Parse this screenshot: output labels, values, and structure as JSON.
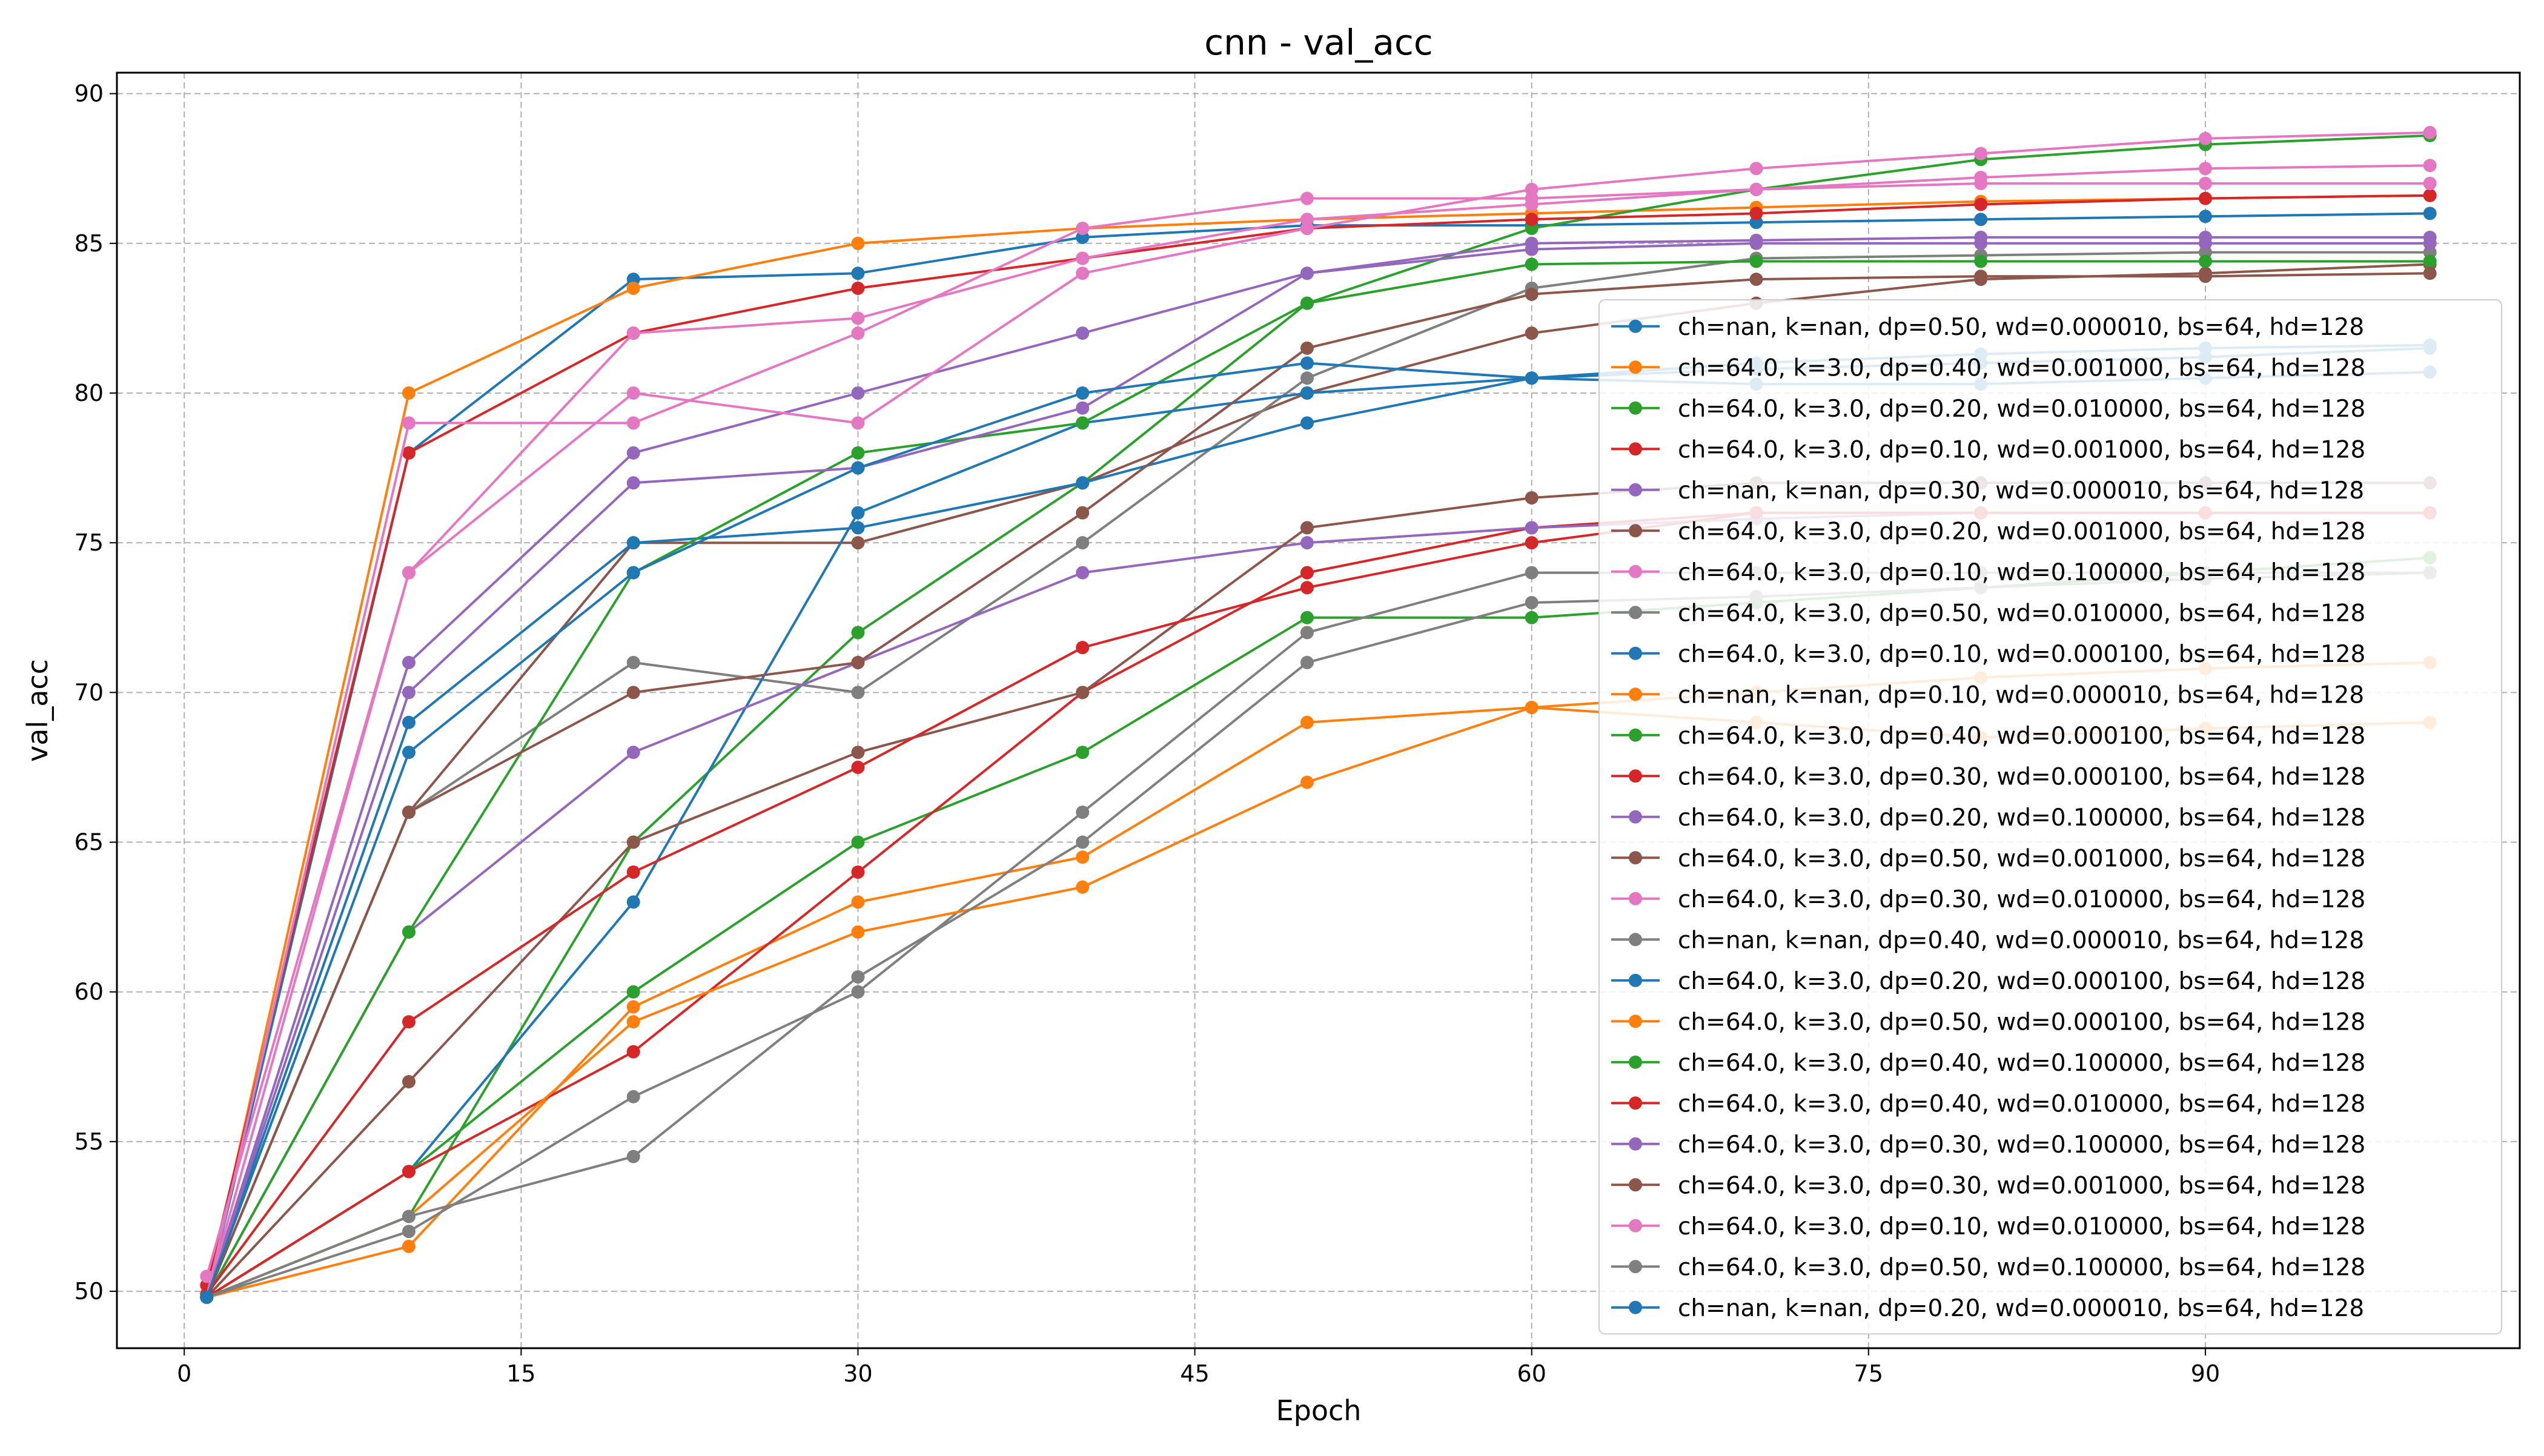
{
  "chart_data": {
    "type": "line",
    "title": "cnn - val_acc",
    "xlabel": "Epoch",
    "ylabel": "val_acc",
    "xlim": [
      -3,
      104
    ],
    "ylim": [
      48.1,
      90.7
    ],
    "xticks": [
      0,
      15,
      30,
      45,
      60,
      75,
      90
    ],
    "yticks": [
      50,
      55,
      60,
      65,
      70,
      75,
      80,
      85,
      90
    ],
    "grid": true,
    "legend_position": "lower-right",
    "markers": true,
    "colors": [
      "#1f77b4",
      "#ff7f0e",
      "#2ca02c",
      "#d62728",
      "#9467bd",
      "#8c564b",
      "#e377c2",
      "#7f7f7f"
    ],
    "series": [
      {
        "name": "ch=nan, k=nan, dp=0.50, wd=0.000010, bs=64, hd=128",
        "x": [
          1,
          10,
          20,
          30,
          40,
          50,
          60,
          70,
          80,
          90,
          100
        ],
        "y": [
          49.8,
          78,
          83.8,
          84,
          85.2,
          85.6,
          85.6,
          85.7,
          85.8,
          85.9,
          86.0
        ]
      },
      {
        "name": "ch=64.0, k=3.0, dp=0.40, wd=0.001000, bs=64, hd=128",
        "x": [
          1,
          10,
          20,
          30,
          40,
          50,
          60,
          70,
          80,
          90,
          100
        ],
        "y": [
          49.9,
          80,
          83.5,
          85,
          85.5,
          85.8,
          86.0,
          86.2,
          86.4,
          86.5,
          86.6
        ]
      },
      {
        "name": "ch=64.0, k=3.0, dp=0.20, wd=0.010000, bs=64, hd=128",
        "x": [
          1,
          10,
          20,
          30,
          40,
          50,
          60,
          70,
          80,
          90,
          100
        ],
        "y": [
          49.8,
          52.5,
          65,
          72,
          77,
          83,
          85.5,
          86.8,
          87.8,
          88.3,
          88.6
        ]
      },
      {
        "name": "ch=64.0, k=3.0, dp=0.10, wd=0.001000, bs=64, hd=128",
        "x": [
          1,
          10,
          20,
          30,
          40,
          50,
          60,
          70,
          80,
          90,
          100
        ],
        "y": [
          50.2,
          78,
          82,
          83.5,
          84.5,
          85.5,
          85.8,
          86.0,
          86.3,
          86.5,
          86.6
        ]
      },
      {
        "name": "ch=nan, k=nan, dp=0.30, wd=0.000010, bs=64, hd=128",
        "x": [
          1,
          10,
          20,
          30,
          40,
          50,
          60,
          70,
          80,
          90,
          100
        ],
        "y": [
          49.8,
          71,
          78,
          80,
          82,
          84,
          85,
          85.1,
          85.2,
          85.2,
          85.2
        ]
      },
      {
        "name": "ch=64.0, k=3.0, dp=0.20, wd=0.001000, bs=64, hd=128",
        "x": [
          1,
          10,
          20,
          30,
          40,
          50,
          60,
          70,
          80,
          90,
          100
        ],
        "y": [
          49.8,
          66,
          75,
          75,
          77,
          80,
          82,
          83,
          83.8,
          84,
          84.3
        ]
      },
      {
        "name": "ch=64.0, k=3.0, dp=0.10, wd=0.100000, bs=64, hd=128",
        "x": [
          1,
          10,
          20,
          30,
          40,
          50,
          60,
          70,
          80,
          90,
          100
        ],
        "y": [
          50.5,
          74,
          80,
          79,
          84,
          85.5,
          86.8,
          87.5,
          88.0,
          88.5,
          88.7
        ]
      },
      {
        "name": "ch=64.0, k=3.0, dp=0.50, wd=0.010000, bs=64, hd=128",
        "x": [
          1,
          10,
          20,
          30,
          40,
          50,
          60,
          70,
          80,
          90,
          100
        ],
        "y": [
          49.8,
          66,
          71,
          70,
          75,
          80.5,
          83.5,
          84.5,
          84.6,
          84.7,
          84.7
        ]
      },
      {
        "name": "ch=64.0, k=3.0, dp=0.10, wd=0.000100, bs=64, hd=128",
        "x": [
          1,
          10,
          20,
          30,
          40,
          50,
          60,
          70,
          80,
          90,
          100
        ],
        "y": [
          49.8,
          54,
          63,
          76,
          79,
          80,
          80.5,
          81,
          81.3,
          81.5,
          81.6
        ]
      },
      {
        "name": "ch=nan, k=nan, dp=0.10, wd=0.000010, bs=64, hd=128",
        "x": [
          1,
          10,
          20,
          30,
          40,
          50,
          60,
          70,
          80,
          90,
          100
        ],
        "y": [
          49.8,
          51.5,
          59.5,
          63,
          64.5,
          69,
          69.5,
          70,
          70.5,
          70.8,
          71
        ]
      },
      {
        "name": "ch=64.0, k=3.0, dp=0.40, wd=0.000100, bs=64, hd=128",
        "x": [
          1,
          10,
          20,
          30,
          40,
          50,
          60,
          70,
          80,
          90,
          100
        ],
        "y": [
          49.8,
          54,
          60,
          65,
          68,
          72.5,
          72.5,
          73,
          73.5,
          74,
          74.5
        ]
      },
      {
        "name": "ch=64.0, k=3.0, dp=0.30, wd=0.000100, bs=64, hd=128",
        "x": [
          1,
          10,
          20,
          30,
          40,
          50,
          60,
          70,
          80,
          90,
          100
        ],
        "y": [
          49.8,
          54,
          58,
          64,
          70,
          74,
          75.5,
          76,
          76,
          76,
          76
        ]
      },
      {
        "name": "ch=64.0, k=3.0, dp=0.20, wd=0.100000, bs=64, hd=128",
        "x": [
          1,
          10,
          20,
          30,
          40,
          50,
          60,
          70,
          80,
          90,
          100
        ],
        "y": [
          49.8,
          62,
          68,
          71,
          74,
          75,
          75.5,
          75.8,
          76,
          76,
          76
        ]
      },
      {
        "name": "ch=64.0, k=3.0, dp=0.50, wd=0.001000, bs=64, hd=128",
        "x": [
          1,
          10,
          20,
          30,
          40,
          50,
          60,
          70,
          80,
          90,
          100
        ],
        "y": [
          49.8,
          57,
          65,
          68,
          70,
          75.5,
          76.5,
          77,
          77,
          77,
          77
        ]
      },
      {
        "name": "ch=64.0, k=3.0, dp=0.30, wd=0.010000, bs=64, hd=128",
        "x": [
          1,
          10,
          20,
          30,
          40,
          50,
          60,
          70,
          80,
          90,
          100
        ],
        "y": [
          49.8,
          74,
          82,
          82.5,
          84.5,
          85.8,
          86.3,
          86.8,
          87.2,
          87.5,
          87.6
        ]
      },
      {
        "name": "ch=nan, k=nan, dp=0.40, wd=0.000010, bs=64, hd=128",
        "x": [
          1,
          10,
          20,
          30,
          40,
          50,
          60,
          70,
          80,
          90,
          100
        ],
        "y": [
          49.8,
          52,
          56.5,
          60,
          66,
          72,
          74,
          74,
          74,
          74,
          74
        ]
      },
      {
        "name": "ch=64.0, k=3.0, dp=0.20, wd=0.000100, bs=64, hd=128",
        "x": [
          1,
          10,
          20,
          30,
          40,
          50,
          60,
          70,
          80,
          90,
          100
        ],
        "y": [
          49.8,
          69,
          75,
          75.5,
          77,
          79,
          80.5,
          80.8,
          81,
          81.2,
          81.5
        ]
      },
      {
        "name": "ch=64.0, k=3.0, dp=0.50, wd=0.000100, bs=64, hd=128",
        "x": [
          1,
          10,
          20,
          30,
          40,
          50,
          60,
          70,
          80,
          90,
          100
        ],
        "y": [
          49.8,
          52.5,
          59,
          62,
          63.5,
          67,
          69.5,
          69,
          68.5,
          68.8,
          69
        ]
      },
      {
        "name": "ch=64.0, k=3.0, dp=0.40, wd=0.100000, bs=64, hd=128",
        "x": [
          1,
          10,
          20,
          30,
          40,
          50,
          60,
          70,
          80,
          90,
          100
        ],
        "y": [
          49.8,
          62,
          74,
          78,
          79,
          83,
          84.3,
          84.4,
          84.4,
          84.4,
          84.4
        ]
      },
      {
        "name": "ch=64.0, k=3.0, dp=0.40, wd=0.010000, bs=64, hd=128",
        "x": [
          1,
          10,
          20,
          30,
          40,
          50,
          60,
          70,
          80,
          90,
          100
        ],
        "y": [
          49.9,
          59,
          64,
          67.5,
          71.5,
          73.5,
          75,
          76,
          76,
          76,
          76
        ]
      },
      {
        "name": "ch=64.0, k=3.0, dp=0.30, wd=0.100000, bs=64, hd=128",
        "x": [
          1,
          10,
          20,
          30,
          40,
          50,
          60,
          70,
          80,
          90,
          100
        ],
        "y": [
          49.8,
          70,
          77,
          77.5,
          79.5,
          84,
          84.8,
          85,
          85.0,
          85.0,
          85.0
        ]
      },
      {
        "name": "ch=64.0, k=3.0, dp=0.30, wd=0.001000, bs=64, hd=128",
        "x": [
          1,
          10,
          20,
          30,
          40,
          50,
          60,
          70,
          80,
          90,
          100
        ],
        "y": [
          49.8,
          66,
          70,
          71,
          76,
          81.5,
          83.3,
          83.8,
          83.9,
          83.9,
          84
        ]
      },
      {
        "name": "ch=64.0, k=3.0, dp=0.10, wd=0.010000, bs=64, hd=128",
        "x": [
          1,
          10,
          20,
          30,
          40,
          50,
          60,
          70,
          80,
          90,
          100
        ],
        "y": [
          49.8,
          79,
          79,
          82,
          85.5,
          86.5,
          86.5,
          86.8,
          87.0,
          87.0,
          87.0
        ]
      },
      {
        "name": "ch=64.0, k=3.0, dp=0.50, wd=0.100000, bs=64, hd=128",
        "x": [
          1,
          10,
          20,
          30,
          40,
          50,
          60,
          70,
          80,
          90,
          100
        ],
        "y": [
          49.8,
          52.5,
          54.5,
          60.5,
          65,
          71,
          73,
          73.2,
          73.5,
          73.8,
          74
        ]
      },
      {
        "name": "ch=nan, k=nan, dp=0.20, wd=0.000010, bs=64, hd=128",
        "x": [
          1,
          10,
          20,
          30,
          40,
          50,
          60,
          70,
          80,
          90,
          100
        ],
        "y": [
          49.8,
          68,
          74,
          77.5,
          80,
          81,
          80.5,
          80.3,
          80.3,
          80.5,
          80.7
        ]
      }
    ]
  }
}
